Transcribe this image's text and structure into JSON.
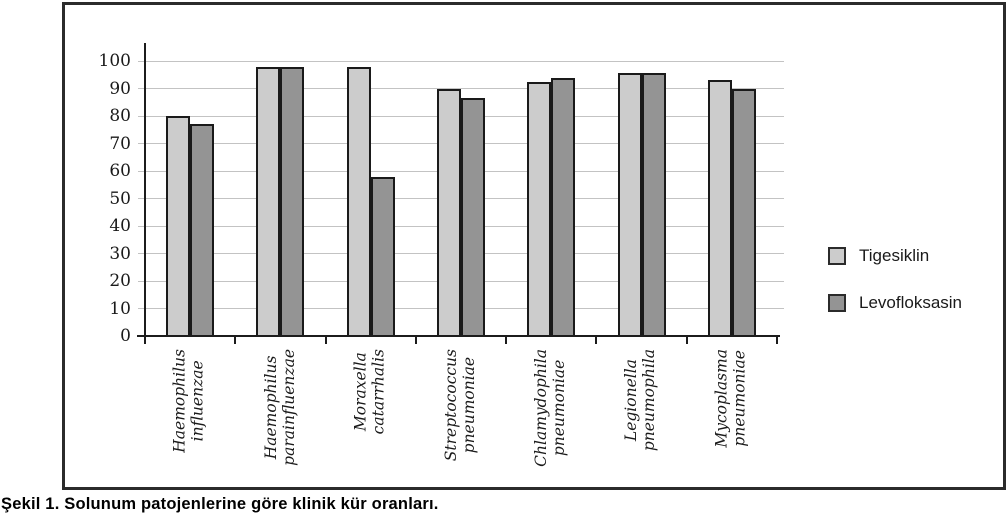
{
  "figure": {
    "caption": "Şekil 1. Solunum patojenlerine göre klinik kür oranları."
  },
  "chart_data": {
    "type": "bar",
    "title": "",
    "xlabel": "",
    "ylabel": "",
    "categories": [
      "Haemophilus influenzae",
      "Haemophilus parainfluenzae",
      "Moraxella catarrhalis",
      "Streptococcus pneumoniae",
      "Chlamydophila pneumoniae",
      "Legionella pneumophila",
      "Mycoplasma pneumoniae"
    ],
    "series": [
      {
        "name": "Tigesiklin",
        "color": "#cccccc",
        "values": [
          80,
          98,
          98,
          90,
          92.5,
          95.5,
          93
        ]
      },
      {
        "name": "Levofloksasin",
        "color": "#949494",
        "values": [
          77,
          98,
          58,
          86.5,
          94,
          95.5,
          90
        ]
      }
    ],
    "ylim": [
      0,
      100
    ],
    "ytick_step": 10,
    "grid": true,
    "legend_position": "right-outside",
    "bar_border_color": "#1a1a1a",
    "gridline_color": "#c3c3c3",
    "axis_color": "#1c1c1c"
  }
}
